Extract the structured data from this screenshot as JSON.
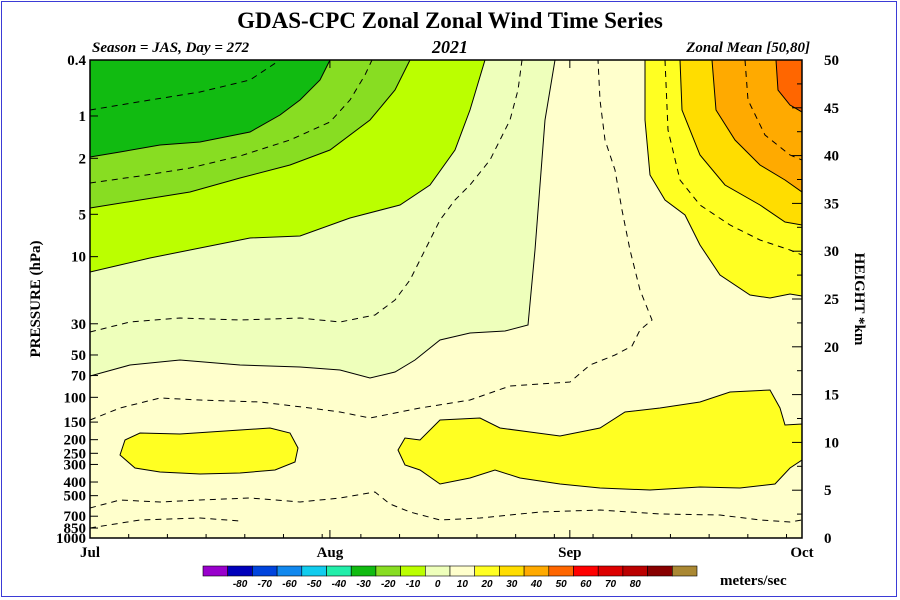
{
  "chart_data": {
    "type": "heatmap",
    "title": "GDAS-CPC Zonal Zonal Wind Time Series",
    "subtitle_left": "Season = JAS, Day = 272",
    "subtitle_center": "2021",
    "subtitle_right": "Zonal Mean [50,80]",
    "xlabel": "",
    "ylabel": "PRESSURE (hPa)",
    "ylabel_right": "HEIGHT *km",
    "x_ticks": [
      "Jul",
      "Aug",
      "Sep",
      "Oct"
    ],
    "x_tick_days": [
      0,
      31,
      62,
      92
    ],
    "xlim": [
      0,
      92
    ],
    "y_ticks": [
      "0.4",
      "1",
      "2",
      "5",
      "10",
      "30",
      "50",
      "70",
      "100",
      "150",
      "200",
      "250",
      "300",
      "400",
      "500",
      "700",
      "850",
      "1000"
    ],
    "y_tick_values": [
      0.4,
      1,
      2,
      5,
      10,
      30,
      50,
      70,
      100,
      150,
      200,
      250,
      300,
      400,
      500,
      700,
      850,
      1000
    ],
    "ylim": [
      1000,
      0.4
    ],
    "height_ticks": [
      "0",
      "5",
      "10",
      "15",
      "20",
      "25",
      "30",
      "35",
      "40",
      "45",
      "50"
    ],
    "height_values": [
      0,
      5,
      10,
      15,
      20,
      25,
      30,
      35,
      40,
      45,
      50
    ],
    "legend_values": [
      "-80",
      "-70",
      "-60",
      "-50",
      "-40",
      "-30",
      "-20",
      "-10",
      "0",
      "10",
      "20",
      "30",
      "40",
      "50",
      "60",
      "70",
      "80"
    ],
    "legend_colors": [
      "#9900cc",
      "#0000bb",
      "#0044dd",
      "#1188ee",
      "#11ccee",
      "#22eeaa",
      "#11bb11",
      "#88dd22",
      "#bbff00",
      "#eeffbb",
      "#ffffcc",
      "#ffff22",
      "#ffdd00",
      "#ffaa00",
      "#ff6600",
      "#ff0000",
      "#dd0000",
      "#bb0000",
      "#880000",
      "#aa8833"
    ],
    "units": "meters/sec"
  }
}
